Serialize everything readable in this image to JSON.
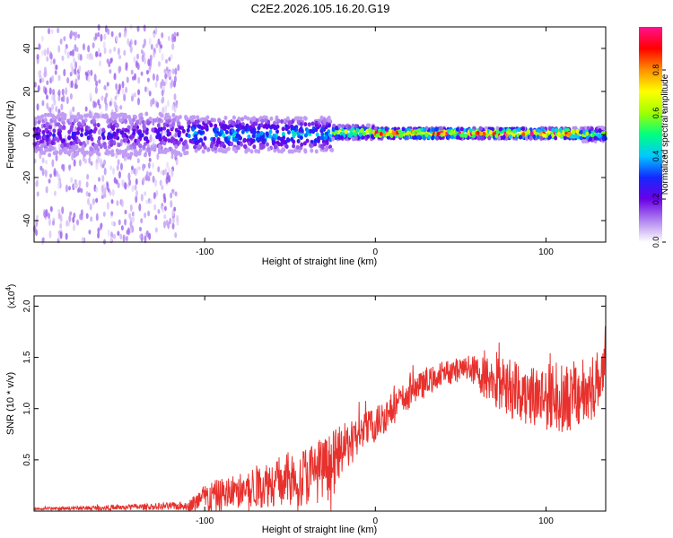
{
  "title": "C2E2.2026.105.16.20.G19",
  "chart_data": [
    {
      "type": "heatmap",
      "name": "spectrogram",
      "xlabel": "Height of straight line (km)",
      "ylabel": "Frequency (Hz)",
      "xlim": [
        -200,
        135
      ],
      "ylim": [
        -50,
        50
      ],
      "xticks": [
        -100,
        0,
        100
      ],
      "yticks": [
        -40,
        -20,
        0,
        20,
        40
      ],
      "colorbar": {
        "label": "Normalized spectral amplitude",
        "range": [
          0,
          1
        ],
        "ticks": [
          0.0,
          0.2,
          0.4,
          0.6,
          0.8
        ],
        "tick_labels": [
          "0.0",
          "0.2",
          "0.4",
          "0.6",
          "0.8"
        ],
        "colormap": [
          "#ffffff",
          "#b084f0",
          "#6a00e6",
          "#1428ff",
          "#00c8ff",
          "#00ff80",
          "#a0ff00",
          "#ffff00",
          "#ff9000",
          "#ff0000",
          "#ff1090"
        ]
      },
      "band_segments": [
        {
          "x_range": [
            -200,
            -110
          ],
          "center_hz": 0,
          "halfwidth_hz": 6,
          "amplitude": 0.25
        },
        {
          "x_range": [
            -110,
            -25
          ],
          "center_hz": 0,
          "halfwidth_hz": 5,
          "amplitude": 0.4
        },
        {
          "x_range": [
            -25,
            0
          ],
          "center_hz": 1,
          "halfwidth_hz": 2,
          "amplitude": 0.7
        },
        {
          "x_range": [
            0,
            120
          ],
          "center_hz": 0.5,
          "halfwidth_hz": 1.5,
          "amplitude": 0.95
        },
        {
          "x_range": [
            120,
            135
          ],
          "center_hz": 0,
          "halfwidth_hz": 2,
          "amplitude": 0.6
        }
      ],
      "noise_region": {
        "x_range": [
          -200,
          -115
        ],
        "y_range": [
          -50,
          50
        ],
        "amplitude": 0.08
      }
    },
    {
      "type": "line",
      "name": "snr",
      "xlabel": "Height of straight line (km)",
      "ylabel": "SNR (10 * v/v)",
      "multiplier_label": "(x10",
      "multiplier_exponent": "4",
      "multiplier_close": ")",
      "xlim": [
        -200,
        135
      ],
      "ylim": [
        0,
        2.1
      ],
      "xticks": [
        -100,
        0,
        100
      ],
      "yticks": [
        0.5,
        1.0,
        1.5,
        2.0
      ],
      "ytick_labels": [
        "0.5",
        "1.0",
        "1.5",
        "2.0"
      ],
      "color": "#e8312d",
      "envelope": [
        {
          "x": -200,
          "base": 0.02,
          "amp": 0.02
        },
        {
          "x": -140,
          "base": 0.04,
          "amp": 0.05
        },
        {
          "x": -110,
          "base": 0.05,
          "amp": 0.07
        },
        {
          "x": -100,
          "base": 0.12,
          "amp": 0.25
        },
        {
          "x": -80,
          "base": 0.2,
          "amp": 0.3
        },
        {
          "x": -60,
          "base": 0.28,
          "amp": 0.4
        },
        {
          "x": -40,
          "base": 0.35,
          "amp": 0.5
        },
        {
          "x": -25,
          "base": 0.45,
          "amp": 0.55
        },
        {
          "x": -20,
          "base": 0.6,
          "amp": 0.4
        },
        {
          "x": 0,
          "base": 0.85,
          "amp": 0.3
        },
        {
          "x": 20,
          "base": 1.15,
          "amp": 0.25
        },
        {
          "x": 40,
          "base": 1.35,
          "amp": 0.2
        },
        {
          "x": 55,
          "base": 1.4,
          "amp": 0.2
        },
        {
          "x": 70,
          "base": 1.25,
          "amp": 0.45
        },
        {
          "x": 90,
          "base": 1.15,
          "amp": 0.55
        },
        {
          "x": 110,
          "base": 1.1,
          "amp": 0.55
        },
        {
          "x": 125,
          "base": 1.15,
          "amp": 0.6
        },
        {
          "x": 135,
          "base": 1.4,
          "amp": 0.4
        }
      ]
    }
  ]
}
